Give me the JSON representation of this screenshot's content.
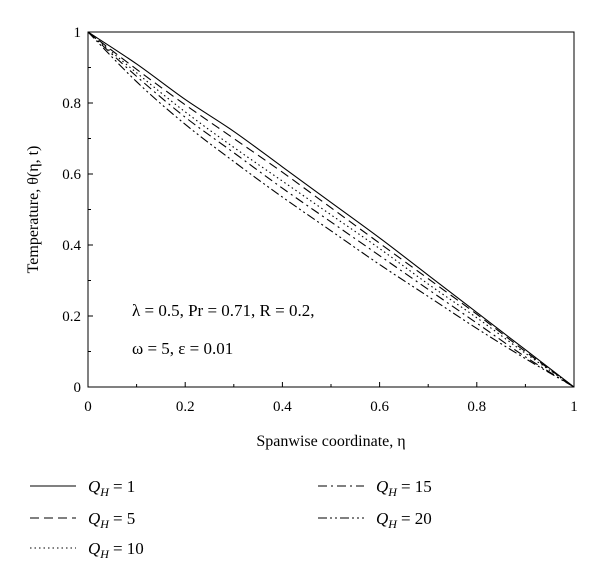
{
  "chart_data": {
    "type": "line",
    "xlabel": "Spanwise coordinate, η",
    "ylabel": "Temperature, θ(η, t)",
    "xlim": [
      0,
      1
    ],
    "ylim": [
      0,
      1
    ],
    "x_ticks": [
      "0",
      "0.2",
      "0.4",
      "0.6",
      "0.8",
      "1"
    ],
    "y_ticks": [
      "0",
      "0.2",
      "0.4",
      "0.6",
      "0.8",
      "1"
    ],
    "grid": false,
    "legend_position": "bottom",
    "annotation": {
      "line1": "λ = 0.5, Pr = 0.71, R = 0.2,",
      "line2": "ω = 5, ε = 0.01"
    },
    "x": [
      0,
      0.1,
      0.2,
      0.3,
      0.4,
      0.5,
      0.6,
      0.7,
      0.8,
      0.9,
      1.0
    ],
    "series": [
      {
        "name": "Q_H = 1",
        "label_main": "Q",
        "label_sub": "H",
        "label_value": "= 1",
        "dash": "solid",
        "values": [
          1.0,
          0.91,
          0.81,
          0.72,
          0.62,
          0.52,
          0.42,
          0.315,
          0.21,
          0.105,
          0.0
        ]
      },
      {
        "name": "Q_H = 5",
        "label_main": "Q",
        "label_sub": "H",
        "label_value": "= 5",
        "dash": "dashed",
        "values": [
          1.0,
          0.895,
          0.795,
          0.7,
          0.605,
          0.505,
          0.405,
          0.305,
          0.205,
          0.1,
          0.0
        ]
      },
      {
        "name": "Q_H = 10",
        "label_main": "Q",
        "label_sub": "H",
        "label_value": "= 10",
        "dash": "dotted",
        "values": [
          1.0,
          0.885,
          0.775,
          0.675,
          0.58,
          0.485,
          0.39,
          0.29,
          0.195,
          0.095,
          0.0
        ]
      },
      {
        "name": "Q_H = 15",
        "label_main": "Q",
        "label_sub": "H",
        "label_value": "= 15",
        "dash": "dashdot",
        "values": [
          1.0,
          0.875,
          0.76,
          0.66,
          0.56,
          0.465,
          0.37,
          0.275,
          0.18,
          0.085,
          0.0
        ]
      },
      {
        "name": "Q_H = 20",
        "label_main": "Q",
        "label_sub": "H",
        "label_value": "= 20",
        "dash": "dashdotdot",
        "values": [
          1.0,
          0.86,
          0.74,
          0.635,
          0.535,
          0.44,
          0.345,
          0.255,
          0.165,
          0.08,
          0.0
        ]
      }
    ]
  }
}
